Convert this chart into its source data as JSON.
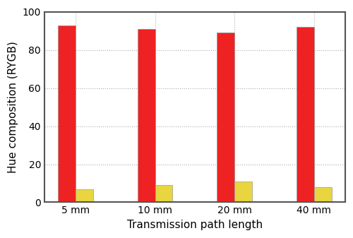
{
  "categories": [
    "5 mm",
    "10 mm",
    "20 mm",
    "40 mm"
  ],
  "red_values": [
    93,
    91,
    89,
    92
  ],
  "yellow_values": [
    7,
    9,
    11,
    8
  ],
  "red_color": "#ee2222",
  "yellow_color": "#e8d540",
  "bar_edge_color": "#999999",
  "xlabel": "Transmission path length",
  "ylabel": "Hue composition (RYGB)",
  "ylim": [
    0,
    100
  ],
  "yticks": [
    0,
    20,
    40,
    60,
    80,
    100
  ],
  "bar_width": 0.22,
  "background_color": "#ffffff",
  "grid_color": "#aaaaaa",
  "xlabel_fontsize": 11,
  "ylabel_fontsize": 11,
  "tick_fontsize": 10,
  "spine_linewidth": 1.5,
  "spine_color": "#555555"
}
